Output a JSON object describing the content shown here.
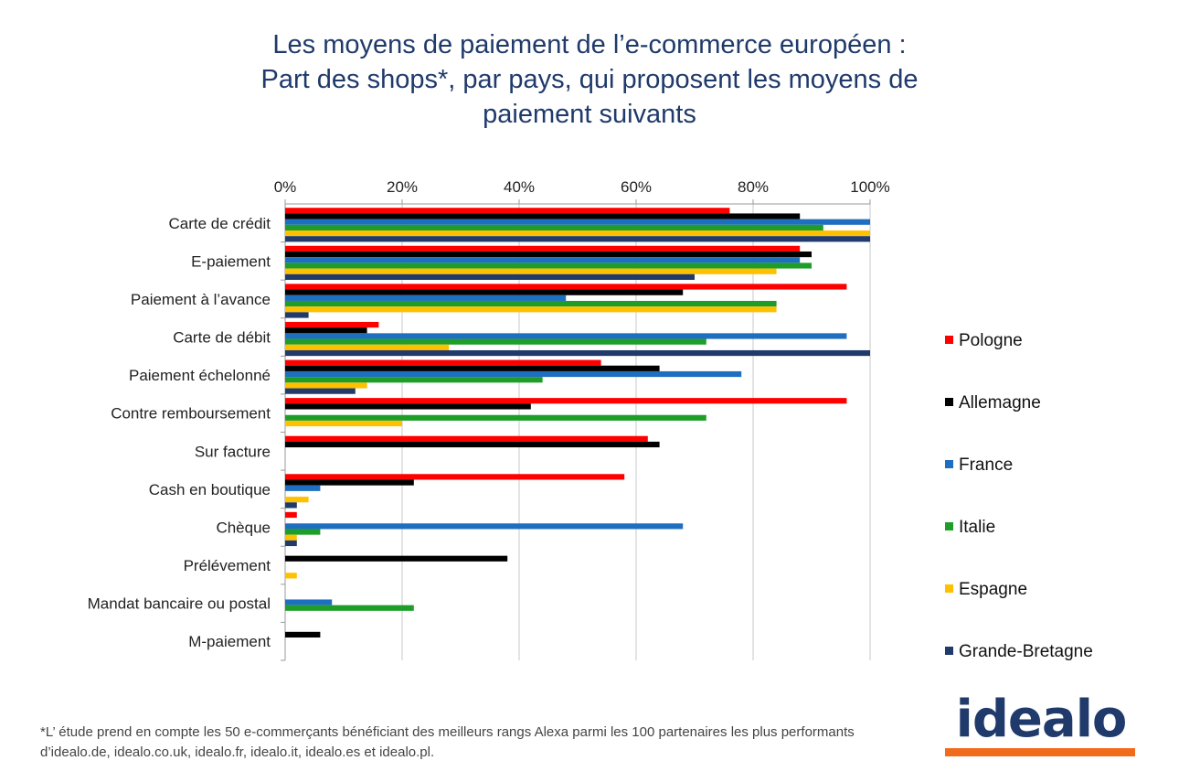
{
  "title_lines": [
    "Les moyens de paiement de l’e-commerce européen :",
    "Part des shops*, par pays, qui proposent les moyens de",
    "paiement suivants"
  ],
  "footnote": "*L’ étude prend en compte les 50 e-commerçants bénéficiant des meilleurs rangs Alexa parmi les 100 partenaires les plus performants d’idealo.de, idealo.co.uk, idealo.fr, idealo.it, idealo.es et idealo.pl.",
  "logo_text": "idealo",
  "chart_data": {
    "type": "bar",
    "orientation": "horizontal",
    "title": "Les moyens de paiement de l’e-commerce européen : Part des shops*, par pays, qui proposent les moyens de paiement suivants",
    "xlabel": "",
    "ylabel": "",
    "xlim": [
      0,
      100
    ],
    "ticks": [
      "0%",
      "20%",
      "40%",
      "60%",
      "80%",
      "100%"
    ],
    "grid": "vertical",
    "legend_position": "right",
    "categories": [
      "Carte de crédit",
      "E-paiement",
      "Paiement à l’avance",
      "Carte de débit",
      "Paiement échelonné",
      "Contre remboursement",
      "Sur facture",
      "Cash en boutique",
      "Chèque",
      "Prélévement",
      "Mandat bancaire ou postal",
      "M-paiement"
    ],
    "series": [
      {
        "name": "Pologne",
        "color": "#ff0000",
        "values": [
          76,
          88,
          96,
          16,
          54,
          96,
          62,
          58,
          2,
          0,
          0,
          0
        ]
      },
      {
        "name": "Allemagne",
        "color": "#000000",
        "values": [
          88,
          90,
          68,
          14,
          64,
          42,
          64,
          22,
          0,
          38,
          0,
          6
        ]
      },
      {
        "name": "France",
        "color": "#1f6fc0",
        "values": [
          100,
          88,
          48,
          96,
          78,
          0,
          0,
          6,
          68,
          0,
          8,
          0
        ]
      },
      {
        "name": "Italie",
        "color": "#1e9e29",
        "values": [
          92,
          90,
          84,
          72,
          44,
          72,
          0,
          0,
          6,
          0,
          22,
          0
        ]
      },
      {
        "name": "Espagne",
        "color": "#ffc000",
        "values": [
          100,
          84,
          84,
          28,
          14,
          20,
          0,
          4,
          2,
          2,
          0,
          0
        ]
      },
      {
        "name": "Grande-Bretagne",
        "color": "#1f3a6b",
        "values": [
          100,
          70,
          4,
          100,
          12,
          0,
          0,
          2,
          2,
          0,
          0,
          0
        ]
      }
    ]
  }
}
